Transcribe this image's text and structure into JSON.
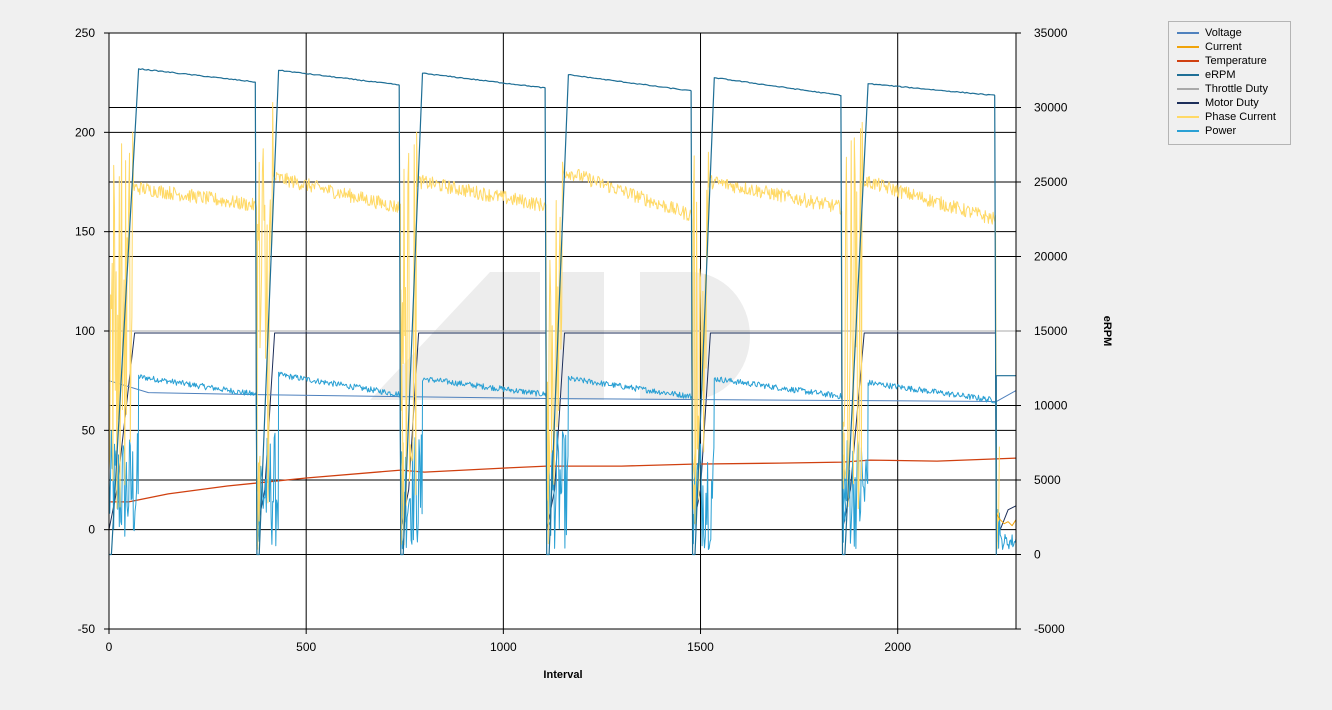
{
  "chart_data": {
    "type": "line",
    "xlabel": "Interval",
    "ylabel": "",
    "y2label": "eRPM",
    "xlim": [
      0,
      2300
    ],
    "ylim": [
      -50,
      250
    ],
    "y2lim": [
      -5000,
      35000
    ],
    "xticks": [
      "0",
      "500",
      "1000",
      "1500",
      "2000"
    ],
    "yticks": [
      "250",
      "200",
      "150",
      "100",
      "50",
      "0",
      "-50"
    ],
    "y2ticks": [
      "35000",
      "30000",
      "25000",
      "20000",
      "15000",
      "10000",
      "5000",
      "0",
      "-5000"
    ],
    "grid": true,
    "legend_position": "top-right",
    "run_cycles": [
      {
        "start": 0,
        "ramp_end": 75,
        "end": 375
      },
      {
        "start": 375,
        "ramp_end": 430,
        "end": 740
      },
      {
        "start": 740,
        "ramp_end": 795,
        "end": 1110
      },
      {
        "start": 1110,
        "ramp_end": 1165,
        "end": 1480
      },
      {
        "start": 1480,
        "ramp_end": 1535,
        "end": 1860
      },
      {
        "start": 1860,
        "ramp_end": 1925,
        "end": 2250
      }
    ],
    "series": [
      {
        "name": "Voltage",
        "color": "#4f81bd",
        "axis": "left",
        "x": [
          0,
          100,
          375,
          740,
          1110,
          1480,
          1860,
          2250,
          2300
        ],
        "y": [
          75,
          69,
          68,
          67,
          66,
          65.5,
          65,
          64.5,
          70
        ]
      },
      {
        "name": "Current",
        "color": "#f0a30a",
        "axis": "left",
        "x": [
          2250,
          2260,
          2270,
          2280,
          2290,
          2300
        ],
        "y": [
          8,
          5,
          3,
          4,
          2,
          5
        ]
      },
      {
        "name": "Temperature",
        "color": "#d04010",
        "axis": "left",
        "x": [
          0,
          50,
          150,
          300,
          500,
          740,
          800,
          1000,
          1110,
          1300,
          1480,
          1700,
          1860,
          1930,
          2100,
          2300
        ],
        "y": [
          14,
          14,
          18,
          22,
          26,
          30,
          29,
          31,
          32,
          32,
          33,
          33.5,
          34,
          35,
          34.5,
          36
        ]
      },
      {
        "name": "eRPM",
        "color": "#1f6f96",
        "axis": "right",
        "cycles_peak": [
          32600,
          32500,
          32300,
          32200,
          32000,
          31600
        ],
        "cycles_end": [
          31700,
          31500,
          31300,
          31100,
          30800,
          30800
        ],
        "tail_x": [
          2250,
          2300
        ],
        "tail_y": [
          12000,
          12000
        ]
      },
      {
        "name": "Throttle Duty",
        "color": "#a9a9a9",
        "axis": "left",
        "x": [
          0,
          2300
        ],
        "y": [
          100,
          100
        ]
      },
      {
        "name": "Motor Duty",
        "color": "#1c2e5a",
        "axis": "left",
        "cycles_level": [
          99,
          99,
          99,
          99,
          99,
          99
        ]
      },
      {
        "name": "Phase Current",
        "color": "#ffd966",
        "axis": "left",
        "cycles_spike": [
          200,
          215,
          200,
          185,
          190,
          205
        ],
        "cycles_level_start": [
          172,
          177,
          175,
          180,
          175,
          175
        ],
        "cycles_level_end": [
          163,
          162,
          163,
          158,
          162,
          156
        ]
      },
      {
        "name": "Power",
        "color": "#2aa0d4",
        "axis": "left",
        "cycles_level_start": [
          77,
          78,
          76,
          76,
          76,
          74
        ],
        "cycles_level_end": [
          68,
          68,
          68,
          67,
          67,
          65
        ]
      }
    ]
  }
}
